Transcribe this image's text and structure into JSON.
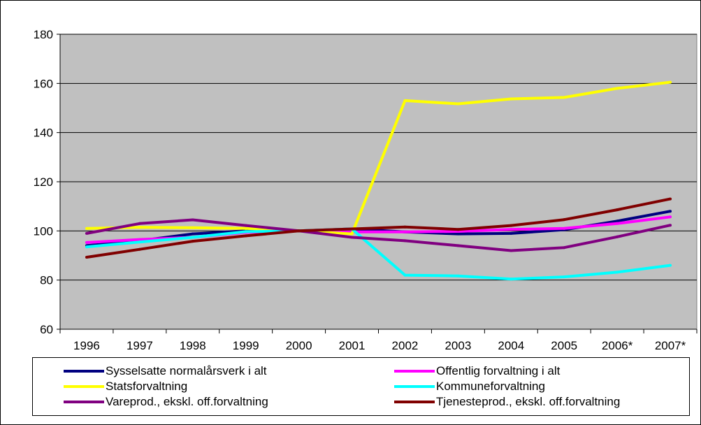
{
  "chart_data": {
    "type": "line",
    "categories": [
      "1996",
      "1997",
      "1998",
      "1999",
      "2000",
      "2001",
      "2002",
      "2003",
      "2004",
      "2005",
      "2006*",
      "2007*"
    ],
    "ylim": [
      60,
      180
    ],
    "yticks": [
      60,
      80,
      100,
      120,
      140,
      160,
      180
    ],
    "grid": true,
    "legend_position": "bottom",
    "plot_background": "#c0c0c0",
    "series": [
      {
        "name": "Sysselsatte normalårsverk i alt",
        "color": "#000080",
        "values": [
          94,
          96,
          98.8,
          100,
          100,
          100.8,
          99.6,
          98.8,
          99,
          100.5,
          104,
          108
        ]
      },
      {
        "name": "Offentlig forvaltning i alt",
        "color": "#ff00ff",
        "values": [
          95.3,
          96.5,
          97.4,
          99.4,
          100,
          99.6,
          99.6,
          99.8,
          100.6,
          101,
          103,
          105.7
        ]
      },
      {
        "name": "Statsforvaltning",
        "color": "#ffff00",
        "values": [
          101,
          101.5,
          101.3,
          101,
          100,
          98.8,
          153,
          151.7,
          153.7,
          154.3,
          158,
          160.5
        ]
      },
      {
        "name": "Kommuneforvaltning",
        "color": "#00ffff",
        "values": [
          93.5,
          95.5,
          97.4,
          99.7,
          100,
          100.8,
          82,
          81.7,
          80.4,
          81.3,
          83.2,
          86
        ]
      },
      {
        "name": "Vareprod., ekskl. off.forvaltning",
        "color": "#800080",
        "values": [
          99,
          103,
          104.5,
          102.2,
          100,
          97.4,
          96,
          94,
          92,
          93.2,
          97.6,
          102.3
        ]
      },
      {
        "name": "Tjenesteprod., ekskl. off.forvaltning",
        "color": "#800000",
        "values": [
          89.3,
          92.5,
          95.8,
          98,
          100,
          100.8,
          101.6,
          100.6,
          102.2,
          104.6,
          108.6,
          113
        ]
      }
    ]
  }
}
